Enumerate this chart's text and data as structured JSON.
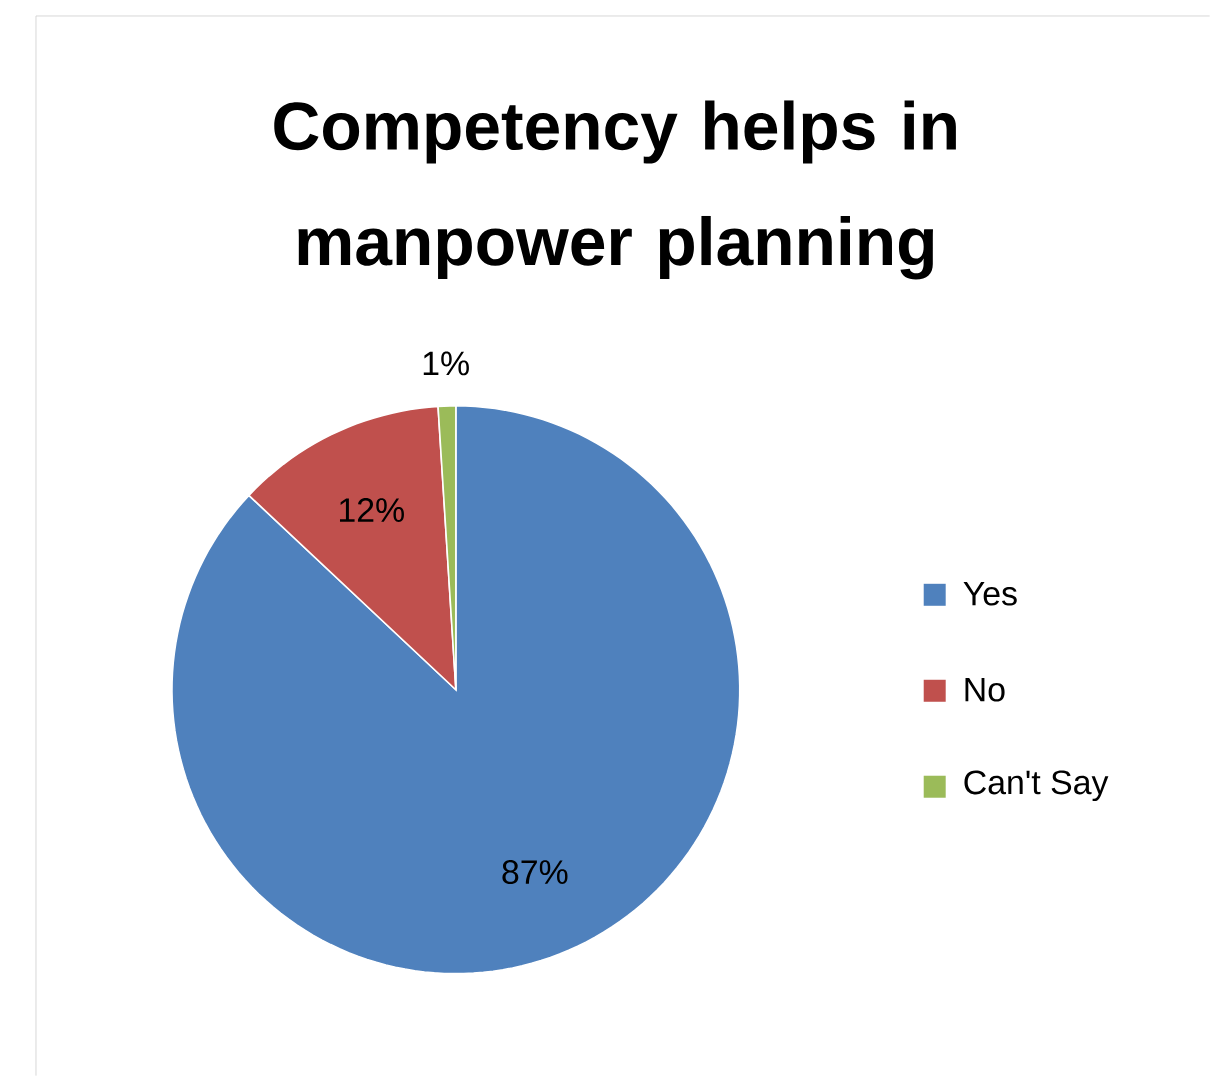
{
  "chart_data": {
    "type": "pie",
    "title": "Competency helps in manpower planning",
    "categories": [
      "Yes",
      "No",
      "Can't Say"
    ],
    "values": [
      87,
      12,
      1
    ],
    "colors": [
      "#4f81bd",
      "#c0504d",
      "#9bbb59"
    ],
    "value_labels": [
      "87%",
      "12%",
      "1%"
    ],
    "legend": "right"
  }
}
